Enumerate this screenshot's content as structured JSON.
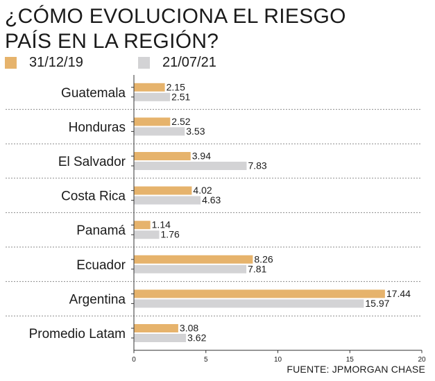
{
  "chart_data": {
    "type": "bar",
    "orientation": "horizontal",
    "title_lines": [
      "¿CÓMO EVOLUCIONA EL RIESGO",
      "PAÍS EN LA REGIÓN?"
    ],
    "categories": [
      "Guatemala",
      "Honduras",
      "El Salvador",
      "Costa Rica",
      "Panamá",
      "Ecuador",
      "Argentina",
      "Promedio Latam"
    ],
    "series": [
      {
        "name": "31/12/19",
        "color": "#e6b36c",
        "values": [
          2.15,
          2.52,
          3.94,
          4.02,
          1.14,
          8.26,
          17.44,
          3.08
        ],
        "labels": [
          "2.15",
          "2.52",
          "3.94",
          "4.02",
          "1.14",
          "8.26",
          "17.44",
          "3.08"
        ]
      },
      {
        "name": "21/07/21",
        "color": "#d3d3d5",
        "values": [
          2.51,
          3.53,
          7.83,
          4.63,
          1.76,
          7.81,
          15.97,
          3.62
        ],
        "labels": [
          "2.51",
          "3.53",
          "7.83",
          "4.63",
          "1.76",
          "7.81",
          "15.97",
          "3.62"
        ]
      }
    ],
    "xlim": [
      0,
      20
    ],
    "xticks": [
      "0",
      "5",
      "10",
      "15",
      "20"
    ],
    "xlabel": "",
    "ylabel": "",
    "grid": false
  },
  "source": "FUENTE: JPMORGAN CHASE"
}
